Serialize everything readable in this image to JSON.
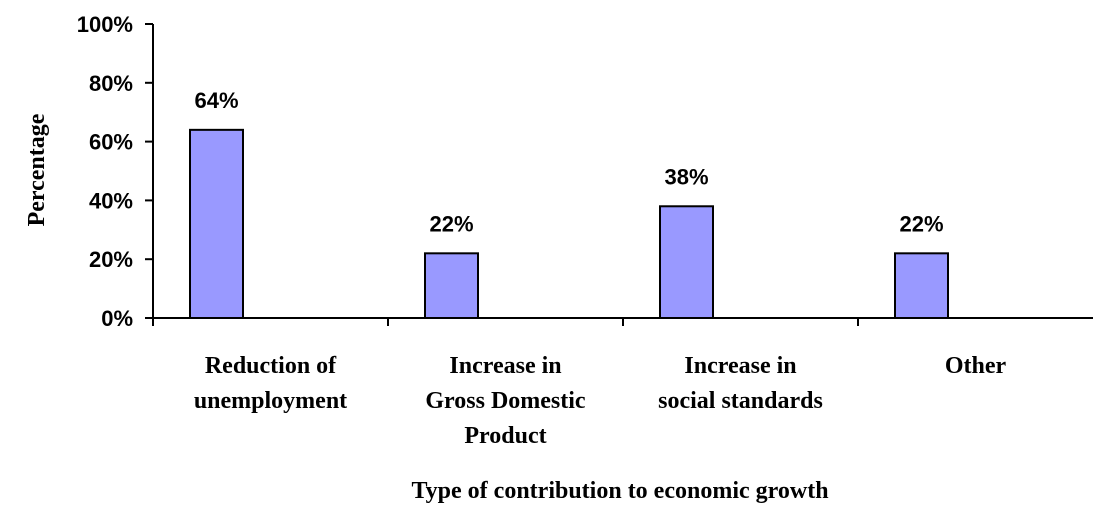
{
  "chart_data": {
    "type": "bar",
    "categories": [
      [
        "Reduction of",
        "unemployment"
      ],
      [
        "Increase in",
        "Gross Domestic",
        "Product"
      ],
      [
        "Increase in",
        "social standards"
      ],
      [
        "Other"
      ]
    ],
    "values": [
      64,
      22,
      38,
      22
    ],
    "data_labels": [
      "64%",
      "22%",
      "38%",
      "22%"
    ],
    "y_ticks": [
      "0%",
      "20%",
      "40%",
      "60%",
      "80%",
      "100%"
    ],
    "ylim": [
      0,
      100
    ],
    "xlabel": "Type of contribution to economic growth",
    "ylabel": "Percentage",
    "title": "",
    "grid": false,
    "legend": "none",
    "colors": {
      "bar_fill": "#9999ff",
      "bar_stroke": "#000000"
    }
  }
}
